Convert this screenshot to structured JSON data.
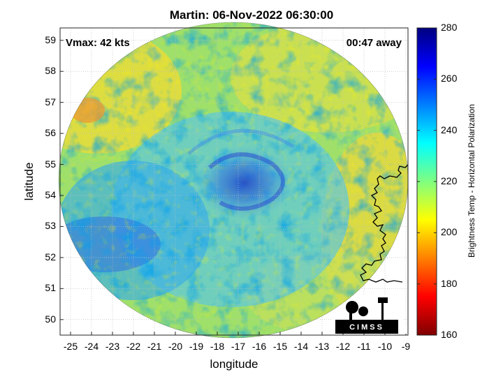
{
  "title": "Martin: 06-Nov-2022 06:30:00",
  "vmax_text": "Vmax: 42 kts",
  "away_text": "00:47 away",
  "xlabel": "longitude",
  "ylabel": "latitude",
  "colorbar_label": "Brightness Temp - Horizontal Polarization",
  "logo_text": "CIMSS",
  "x_ticks": [
    "-25",
    "-24",
    "-23",
    "-22",
    "-21",
    "-20",
    "-19",
    "-18",
    "-17",
    "-16",
    "-15",
    "-14",
    "-13",
    "-12",
    "-11",
    "-10",
    "-9"
  ],
  "y_ticks": [
    "59",
    "58",
    "57",
    "56",
    "55",
    "54",
    "53",
    "52",
    "51",
    "50"
  ],
  "colorbar_ticks": [
    "280",
    "260",
    "240",
    "220",
    "200",
    "180",
    "160"
  ],
  "colorbar_range": [
    160,
    280
  ],
  "map_extent": {
    "lon": [
      -25.5,
      -8.9
    ],
    "lat": [
      49.5,
      59.4
    ]
  },
  "storm_center": {
    "lon": -16.6,
    "lat": 54.4
  },
  "colors": {
    "cold": "#00007f",
    "warm": "#7f0000",
    "mid": "#ffff00",
    "coast": "#000000"
  }
}
